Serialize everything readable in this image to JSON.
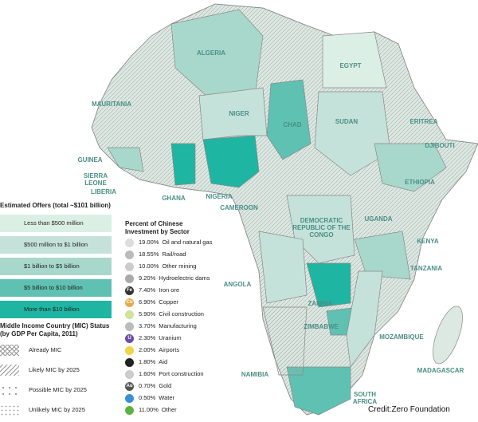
{
  "offers_legend": {
    "title": "Estimated Offers (total ~$101 billion)",
    "items": [
      "Less than $500 million",
      "$500 million to $1 billion",
      "$1 billion to $5 billion",
      "$5 billion to $10 billion",
      "More than $10 billion"
    ]
  },
  "mic_legend": {
    "title": "Middle Income Country (MIC) Status (by GDP Per Capita, 2011)",
    "items": [
      "Already MIC",
      "Likely MIC by 2025",
      "Possible MIC by 2025",
      "Unlikely MIC by 2025"
    ]
  },
  "sector_legend": {
    "title": "Percent of Chinese Investment by Sector",
    "items": [
      {
        "share": "19.00%",
        "name": "Oil and natural gas"
      },
      {
        "share": "18.55%",
        "name": "Rail/road"
      },
      {
        "share": "10.00%",
        "name": "Other mining"
      },
      {
        "share": "9.20%",
        "name": "Hydroelectric dams"
      },
      {
        "share": "7.40%",
        "name": "Iron ore",
        "code": "Fe"
      },
      {
        "share": "6.90%",
        "name": "Copper",
        "code": "Cu"
      },
      {
        "share": "5.90%",
        "name": "Civil construction"
      },
      {
        "share": "3.70%",
        "name": "Manufacturing"
      },
      {
        "share": "2.30%",
        "name": "Uranium",
        "code": "U"
      },
      {
        "share": "2.00%",
        "name": "Airports"
      },
      {
        "share": "1.80%",
        "name": "Aid"
      },
      {
        "share": "1.60%",
        "name": "Port construction"
      },
      {
        "share": "0.70%",
        "name": "Gold",
        "code": "Au"
      },
      {
        "share": "0.50%",
        "name": "Water"
      },
      {
        "share": "11.00%",
        "name": "Other"
      }
    ]
  },
  "countries": [
    "ALGERIA",
    "EGYPT",
    "MAURITANIA",
    "NIGER",
    "CHAD",
    "ERITREA",
    "SUDAN",
    "DJIBOUTI",
    "GUINEA",
    "SIERRA LEONE",
    "LIBERIA",
    "GHANA",
    "NIGERIA",
    "ETHIOPIA",
    "CAMEROON",
    "DEMOCRATIC REPUBLIC OF THE CONGO",
    "UGANDA",
    "KENYA",
    "TANZANIA",
    "ANGOLA",
    "ZAMBIA",
    "ZIMBABWE",
    "MOZAMBIQUE",
    "NAMIBIA",
    "MADAGASCAR",
    "SOUTH AFRICA"
  ],
  "credit": "Credit:Zero Foundation"
}
